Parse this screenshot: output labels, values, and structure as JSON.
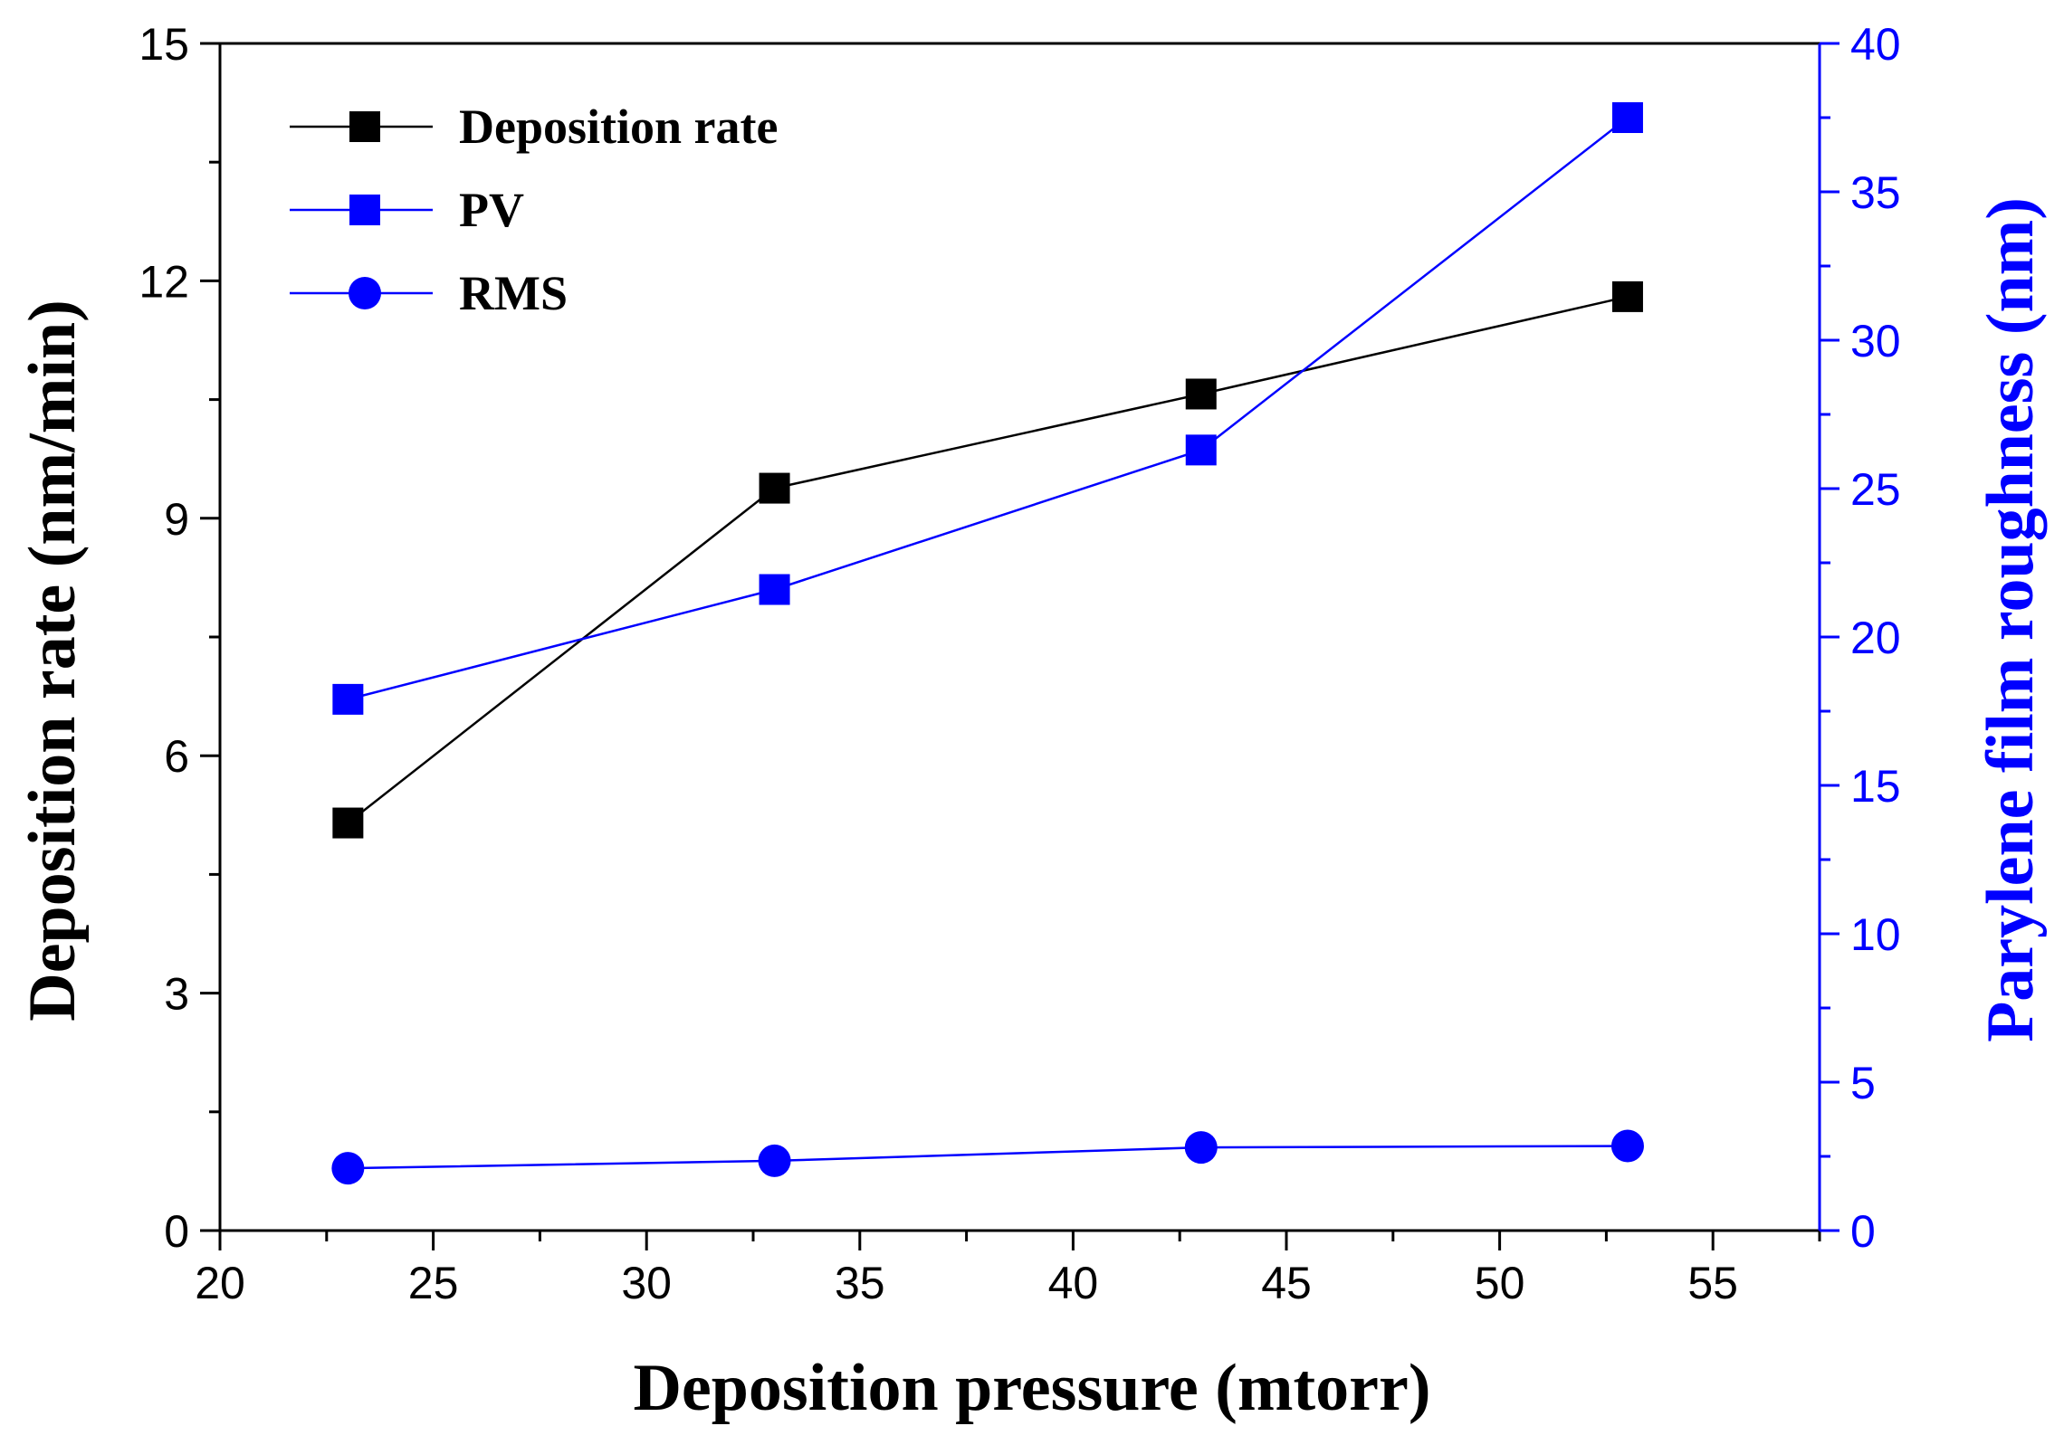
{
  "chart_data": {
    "type": "line",
    "title": "",
    "xlabel": "Deposition pressure (mtorr)",
    "ylabel": "Deposition rate (nm/min)",
    "y2label": "Parylene film roughness (nm)",
    "xlim": [
      20,
      57.5
    ],
    "ylim": [
      0,
      15
    ],
    "y2lim": [
      0,
      40
    ],
    "x_ticks": [
      "20",
      "25",
      "30",
      "35",
      "40",
      "45",
      "50",
      "55"
    ],
    "y_ticks": [
      "0",
      "3",
      "6",
      "9",
      "12",
      "15"
    ],
    "y2_ticks": [
      "0",
      "5",
      "10",
      "15",
      "20",
      "25",
      "30",
      "35",
      "40"
    ],
    "x": [
      23,
      33,
      43,
      53
    ],
    "series": [
      {
        "name": "Deposition rate",
        "axis": "left",
        "marker": "square",
        "color": "#000000",
        "values": [
          5.15,
          9.38,
          10.57,
          11.8
        ]
      },
      {
        "name": "PV",
        "axis": "right",
        "marker": "square",
        "color": "#0000ff",
        "values": [
          17.9,
          21.6,
          26.3,
          37.5
        ]
      },
      {
        "name": "RMS",
        "axis": "right",
        "marker": "circle",
        "color": "#0000ff",
        "values": [
          2.1,
          2.35,
          2.8,
          2.85
        ]
      }
    ],
    "legend_position": "top-left",
    "grid": false
  }
}
